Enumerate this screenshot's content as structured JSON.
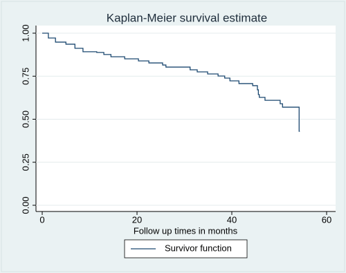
{
  "chart_data": {
    "type": "line",
    "step": "post",
    "title": "Kaplan-Meier survival estimate",
    "x_label": "Follow up times in months",
    "x": [
      0,
      1.3,
      2.8,
      5,
      6.9,
      8.6,
      11.5,
      13,
      14.5,
      17.4,
      20.3,
      22.5,
      25.4,
      26.1,
      31.2,
      32.7,
      34.9,
      37.1,
      38.5,
      39.6,
      41.5,
      44.4,
      45.4,
      45.6,
      45.8,
      47,
      50.2,
      50.7,
      54.2
    ],
    "series": [
      {
        "name": "Survivor function",
        "color": "#1a476f",
        "values": [
          1.0,
          0.972,
          0.948,
          0.936,
          0.912,
          0.892,
          0.888,
          0.876,
          0.863,
          0.851,
          0.839,
          0.827,
          0.815,
          0.803,
          0.787,
          0.775,
          0.763,
          0.751,
          0.739,
          0.723,
          0.707,
          0.695,
          0.671,
          0.643,
          0.627,
          0.61,
          0.59,
          0.57,
          0.43
        ]
      }
    ],
    "xlim": [
      0,
      60
    ],
    "xticks": [
      0,
      20,
      40,
      60
    ],
    "ylim": [
      0,
      1
    ],
    "yticks": [
      {
        "value": 0,
        "label": "0.00"
      },
      {
        "value": 0.25,
        "label": "0.25"
      },
      {
        "value": 0.5,
        "label": "0.50"
      },
      {
        "value": 0.75,
        "label": "0.75"
      },
      {
        "value": 1,
        "label": "1.00"
      }
    ],
    "grid": true,
    "legend": "bottom"
  }
}
